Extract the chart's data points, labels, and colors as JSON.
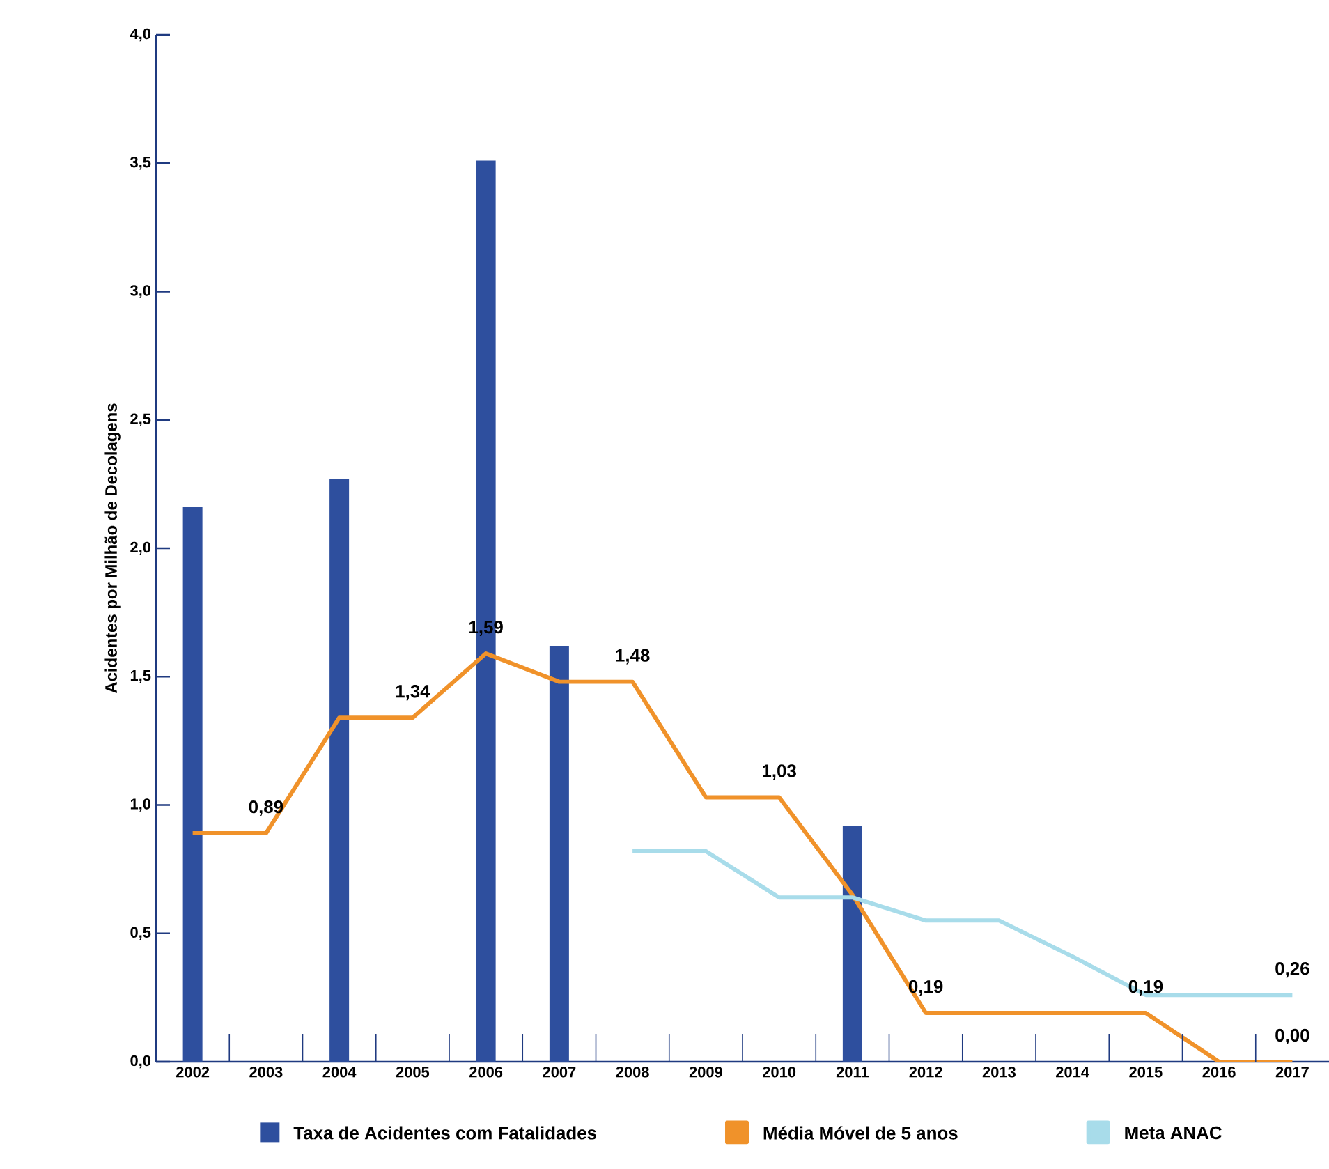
{
  "chart_data": {
    "type": "bar",
    "ylabel": "Acidentes por Milhão de Decolagens",
    "categories": [
      "2002",
      "2003",
      "2004",
      "2005",
      "2006",
      "2007",
      "2008",
      "2009",
      "2010",
      "2011",
      "2012",
      "2013",
      "2014",
      "2015",
      "2016",
      "2017"
    ],
    "series": [
      {
        "name": "Taxa de Acidentes com Fatalidades",
        "color": "#2e4f9e",
        "values": [
          2.16,
          null,
          2.27,
          null,
          3.51,
          1.62,
          null,
          null,
          null,
          0.92,
          null,
          null,
          null,
          null,
          null,
          null
        ]
      },
      {
        "name": "Média Móvel de 5 anos",
        "type": "line",
        "color": "#f0922a",
        "values": [
          0.89,
          0.89,
          1.34,
          1.34,
          1.59,
          1.48,
          1.48,
          1.03,
          1.03,
          0.65,
          0.19,
          0.19,
          0.19,
          0.19,
          0.0,
          0.0
        ],
        "value_labels": [
          null,
          "0,89",
          null,
          "1,34",
          "1,59",
          null,
          "1,48",
          null,
          "1,03",
          null,
          "0,19",
          null,
          null,
          "0,19",
          null,
          "0,00"
        ]
      },
      {
        "name": "Meta ANAC",
        "type": "line",
        "color": "#a8dcea",
        "values": [
          null,
          null,
          null,
          null,
          null,
          null,
          0.82,
          0.82,
          0.64,
          0.64,
          0.55,
          0.55,
          0.41,
          0.26,
          0.26,
          0.26
        ],
        "value_labels": [
          null,
          null,
          null,
          null,
          null,
          null,
          null,
          null,
          null,
          null,
          null,
          null,
          null,
          null,
          null,
          "0,26"
        ]
      }
    ],
    "ylim": [
      0,
      4
    ],
    "yticks": [
      {
        "value": 0,
        "label": "0,0"
      },
      {
        "value": 0.5,
        "label": "0,5"
      },
      {
        "value": 1,
        "label": "1,0"
      },
      {
        "value": 1.5,
        "label": "1,5"
      },
      {
        "value": 2,
        "label": "2,0"
      },
      {
        "value": 2.5,
        "label": "2,5"
      },
      {
        "value": 3,
        "label": "3,0"
      },
      {
        "value": 3.5,
        "label": "3,5"
      },
      {
        "value": 4,
        "label": "4,0"
      }
    ],
    "legend": "bottom"
  }
}
